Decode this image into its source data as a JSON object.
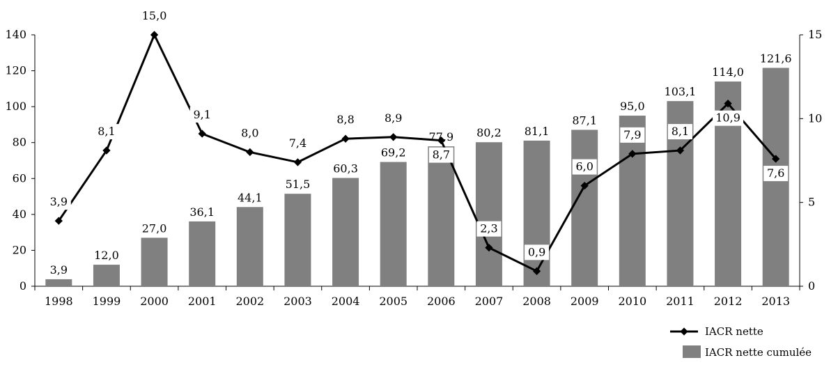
{
  "chart_data": {
    "type": "bar",
    "categories": [
      "1998",
      "1999",
      "2000",
      "2001",
      "2002",
      "2003",
      "2004",
      "2005",
      "2006",
      "2007",
      "2008",
      "2009",
      "2010",
      "2011",
      "2012",
      "2013"
    ],
    "series": [
      {
        "name": "IACR nette cumulée",
        "type": "bar",
        "axis": "left",
        "values": [
          3.9,
          12.0,
          27.0,
          36.1,
          44.1,
          51.5,
          60.3,
          69.2,
          77.9,
          80.2,
          81.1,
          87.1,
          95.0,
          103.1,
          114.0,
          121.6
        ],
        "labels": [
          "3,9",
          "12,0",
          "27,0",
          "36,1",
          "44,1",
          "51,5",
          "60,3",
          "69,2",
          "77,9",
          "80,2",
          "81,1",
          "87,1",
          "95,0",
          "103,1",
          "114,0",
          "121,6"
        ],
        "color": "#808080"
      },
      {
        "name": "IACR nette",
        "type": "line",
        "axis": "right",
        "values": [
          3.9,
          8.1,
          15.0,
          9.1,
          8.0,
          7.4,
          8.8,
          8.9,
          8.7,
          2.3,
          0.9,
          6.0,
          7.9,
          8.1,
          10.9,
          7.6
        ],
        "labels": [
          "3,9",
          "8,1",
          "15,0",
          "9,1",
          "8,0",
          "7,4",
          "8,8",
          "8,9",
          "8,7",
          "2,3",
          "0,9",
          "6,0",
          "7,9",
          "8,1",
          "10,9",
          "7,6"
        ],
        "color": "#000000"
      }
    ],
    "y_left": {
      "lim": [
        0,
        140
      ],
      "ticks": [
        "0",
        "20",
        "40",
        "60",
        "80",
        "100",
        "120",
        "140"
      ]
    },
    "y_right": {
      "lim": [
        0,
        15
      ],
      "ticks": [
        "0",
        "5",
        "10",
        "15"
      ]
    },
    "legend": {
      "position": "bottom-right",
      "entries": [
        "IACR nette",
        "IACR nette cumulée"
      ]
    },
    "grid": false,
    "title": "",
    "xlabel": "",
    "ylabel": ""
  }
}
